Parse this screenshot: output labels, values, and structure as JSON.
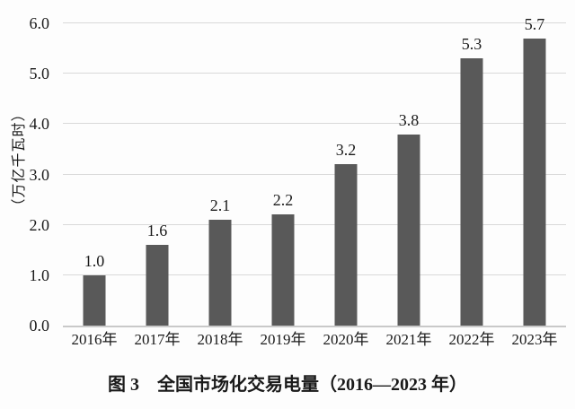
{
  "chart_data": {
    "type": "bar",
    "title": "图 3　全国市场化交易电量（2016—2023 年）",
    "ylabel": "（万亿千瓦时）",
    "categories": [
      "2016年",
      "2017年",
      "2018年",
      "2019年",
      "2020年",
      "2021年",
      "2022年",
      "2023年"
    ],
    "values": [
      1.0,
      1.6,
      2.1,
      2.2,
      3.2,
      3.8,
      5.3,
      5.7
    ],
    "value_labels": [
      "1.0",
      "1.6",
      "2.1",
      "2.2",
      "3.2",
      "3.8",
      "5.3",
      "5.7"
    ],
    "ylim": [
      0,
      6
    ],
    "yticks": [
      "0.0",
      "1.0",
      "2.0",
      "3.0",
      "4.0",
      "5.0",
      "6.0"
    ],
    "grid": "horizontal",
    "legend": "none",
    "bar_color": "#595959",
    "gridline_color": "#d9d9d9",
    "axisline_color": "#c9c9c9",
    "text_color": "#1a1a1a",
    "background_color": "#fdfdfd"
  }
}
